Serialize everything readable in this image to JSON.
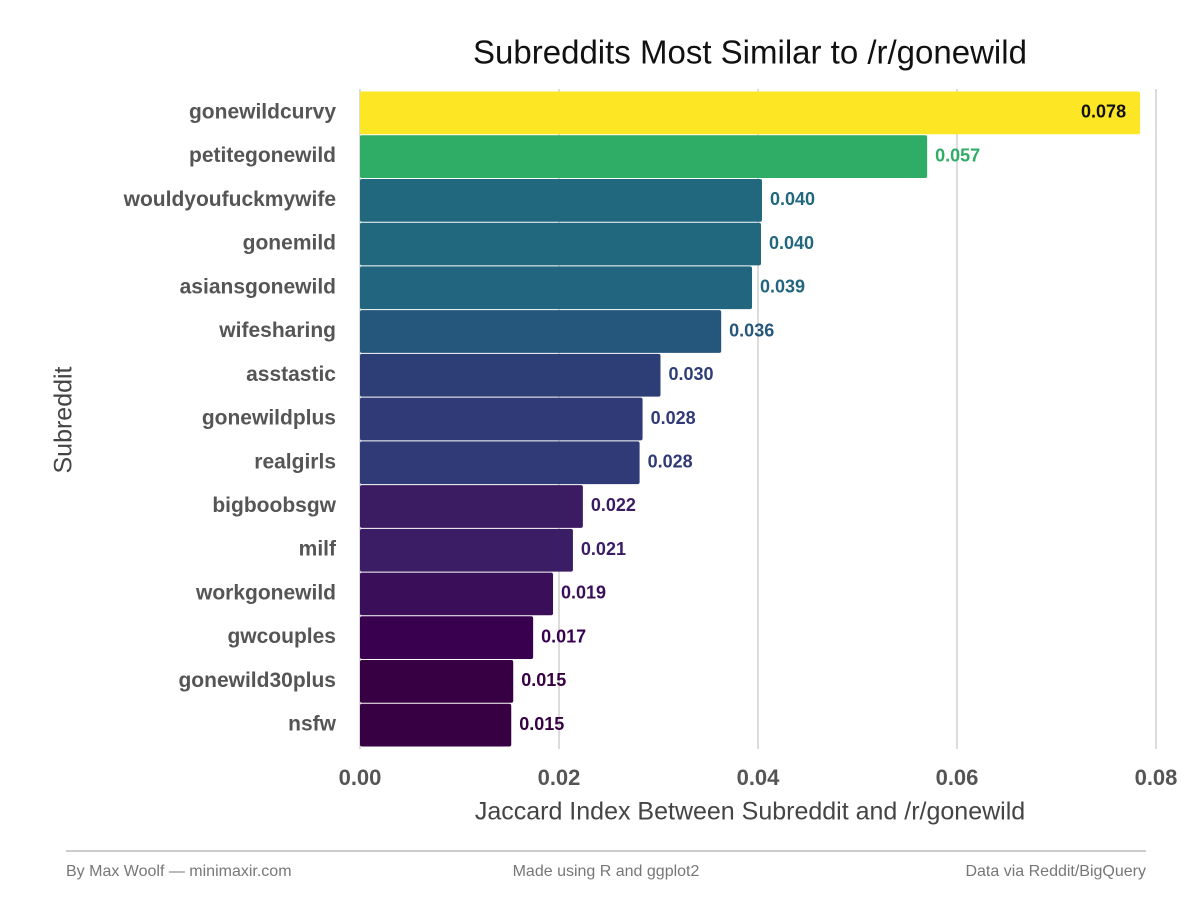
{
  "chart_data": {
    "type": "bar",
    "orientation": "horizontal",
    "title": "Subreddits Most Similar to /r/gonewild",
    "x_label": "Jaccard Index Between Subreddit and /r/gonewild",
    "y_label": "Subreddit",
    "categories": [
      "gonewildcurvy",
      "petitegonewild",
      "wouldyoufuckmywife",
      "gonemild",
      "asiansgonewild",
      "wifesharing",
      "asstastic",
      "gonewildplus",
      "realgirls",
      "bigboobsgw",
      "milf",
      "workgonewild",
      "gwcouples",
      "gonewild30plus",
      "nsfw"
    ],
    "values": [
      0.0784,
      0.057,
      0.0404,
      0.0403,
      0.0394,
      0.0363,
      0.0302,
      0.0284,
      0.0281,
      0.0224,
      0.0214,
      0.0194,
      0.0174,
      0.0154,
      0.0152
    ],
    "value_labels": [
      "0.078",
      "0.057",
      "0.040",
      "0.040",
      "0.039",
      "0.036",
      "0.030",
      "0.028",
      "0.028",
      "0.022",
      "0.021",
      "0.019",
      "0.017",
      "0.015",
      "0.015"
    ],
    "colors": [
      "#fde725",
      "#2fac66",
      "#21677e",
      "#21677e",
      "#21667e",
      "#25567b",
      "#2d3e76",
      "#2f3a76",
      "#2f3a76",
      "#3b1c62",
      "#3a1d64",
      "#3a0e59",
      "#390050",
      "#360042",
      "#360042"
    ],
    "xlim": [
      0,
      0.08
    ],
    "xticks": [
      {
        "value": 0,
        "label": "0.00"
      },
      {
        "value": 0.02,
        "label": "0.02"
      },
      {
        "value": 0.04,
        "label": "0.04"
      },
      {
        "value": 0.06,
        "label": "0.06"
      },
      {
        "value": 0.08,
        "label": "0.08"
      }
    ],
    "grid": true
  },
  "footer": [
    "By Max Woolf — minimaxir.com",
    "Made using R and ggplot2",
    "Data via Reddit/BigQuery"
  ]
}
